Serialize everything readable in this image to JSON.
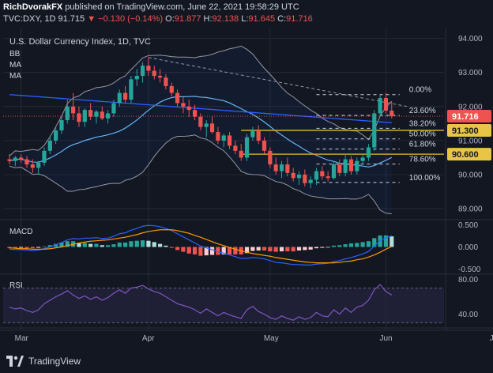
{
  "header": {
    "author": "RichDvorakFX",
    "published": "published on TradingView.com, June 22, 2021 19:58:29 UTC",
    "symbol": "TVC:DXY, 1D",
    "last": "91.715",
    "change": "▼ −0.130 (−0.14%)",
    "ohlc": {
      "o_label": "O:",
      "o": "91.877",
      "h_label": "H:",
      "h": "92.138",
      "l_label": "L:",
      "l": "91.645",
      "c_label": "C:",
      "c": "91.716"
    }
  },
  "footer": {
    "brand": "TradingView"
  },
  "colors": {
    "bg": "#131722",
    "up": "#26a69a",
    "down": "#ef5350",
    "grid": "#2a2e39",
    "fib": "#d1d4dc",
    "gold": "#c9a227",
    "bb": "#9598a1",
    "ma_slow": "#2962ff",
    "ma_fast": "#64b5f6",
    "macd_signal": "#ff9800",
    "rsi": "#7e57c2"
  },
  "chart_data": [
    {
      "type": "candlestick",
      "title": "U.S. Dollar Currency Index, 1D, TVC",
      "indicators": [
        "BB",
        "MA",
        "MA"
      ],
      "ylim": [
        88.7,
        94.2
      ],
      "yticks": [
        "94.000",
        "93.000",
        "92.000",
        "91.000",
        "90.000",
        "89.000"
      ],
      "xticks": [
        "Mar",
        "Apr",
        "May",
        "Jun",
        "Jul"
      ],
      "price_label": "91.716",
      "level_labels": [
        "91.300",
        "90.600"
      ],
      "fib_levels": [
        {
          "label": "0.00%",
          "value": 92.35
        },
        {
          "label": "23.60%",
          "value": 91.74
        },
        {
          "label": "38.20%",
          "value": 91.36
        },
        {
          "label": "50.00%",
          "value": 91.05
        },
        {
          "label": "61.80%",
          "value": 90.75
        },
        {
          "label": "78.60%",
          "value": 90.31
        },
        {
          "label": "100.00%",
          "value": 89.77
        }
      ],
      "candles": [
        [
          90.45,
          90.6,
          90.3,
          90.4
        ],
        [
          90.4,
          90.55,
          90.25,
          90.5
        ],
        [
          90.5,
          90.6,
          90.35,
          90.45
        ],
        [
          90.45,
          90.55,
          90.2,
          90.3
        ],
        [
          90.3,
          90.45,
          90.05,
          90.2
        ],
        [
          90.2,
          90.4,
          90.0,
          90.35
        ],
        [
          90.35,
          90.8,
          90.25,
          90.7
        ],
        [
          90.7,
          91.1,
          90.6,
          91.0
        ],
        [
          91.0,
          91.4,
          90.9,
          91.3
        ],
        [
          91.3,
          91.7,
          91.2,
          91.6
        ],
        [
          91.6,
          92.2,
          91.5,
          92.0
        ],
        [
          92.0,
          92.4,
          91.6,
          91.8
        ],
        [
          91.8,
          92.0,
          91.4,
          91.55
        ],
        [
          91.55,
          91.95,
          91.4,
          91.9
        ],
        [
          91.9,
          92.1,
          91.6,
          91.7
        ],
        [
          91.7,
          91.9,
          91.5,
          91.85
        ],
        [
          91.85,
          92.0,
          91.6,
          91.65
        ],
        [
          91.65,
          91.9,
          91.5,
          91.8
        ],
        [
          91.8,
          92.2,
          91.7,
          92.1
        ],
        [
          92.1,
          92.5,
          92.0,
          92.4
        ],
        [
          92.4,
          92.6,
          92.1,
          92.2
        ],
        [
          92.2,
          92.9,
          92.1,
          92.8
        ],
        [
          92.8,
          93.1,
          92.6,
          92.9
        ],
        [
          92.9,
          93.3,
          92.7,
          93.2
        ],
        [
          93.2,
          93.44,
          92.9,
          93.05
        ],
        [
          93.05,
          93.2,
          92.8,
          92.9
        ],
        [
          92.9,
          93.1,
          92.7,
          92.85
        ],
        [
          92.85,
          92.95,
          92.5,
          92.6
        ],
        [
          92.6,
          92.7,
          92.3,
          92.4
        ],
        [
          92.4,
          92.5,
          92.0,
          92.1
        ],
        [
          92.1,
          92.3,
          91.8,
          92.0
        ],
        [
          92.0,
          92.2,
          91.7,
          91.9
        ],
        [
          91.9,
          92.05,
          91.6,
          91.7
        ],
        [
          91.7,
          91.8,
          91.3,
          91.4
        ],
        [
          91.4,
          91.6,
          91.1,
          91.5
        ],
        [
          91.5,
          91.7,
          91.2,
          91.25
        ],
        [
          91.25,
          91.4,
          90.9,
          91.0
        ],
        [
          91.0,
          91.2,
          90.8,
          91.15
        ],
        [
          91.15,
          91.25,
          90.75,
          90.85
        ],
        [
          90.85,
          91.0,
          90.6,
          90.7
        ],
        [
          90.7,
          90.9,
          90.4,
          90.5
        ],
        [
          90.5,
          91.2,
          90.4,
          91.1
        ],
        [
          91.1,
          91.4,
          91.0,
          91.3
        ],
        [
          91.3,
          91.45,
          90.9,
          91.0
        ],
        [
          91.0,
          91.1,
          90.6,
          90.7
        ],
        [
          90.7,
          90.8,
          90.2,
          90.3
        ],
        [
          90.3,
          90.5,
          90.0,
          90.1
        ],
        [
          90.1,
          90.4,
          89.9,
          90.3
        ],
        [
          90.3,
          90.5,
          89.95,
          90.05
        ],
        [
          90.05,
          90.2,
          89.8,
          89.9
        ],
        [
          89.9,
          90.1,
          89.7,
          90.0
        ],
        [
          90.0,
          90.15,
          89.65,
          89.75
        ],
        [
          89.75,
          89.95,
          89.6,
          89.85
        ],
        [
          89.85,
          90.2,
          89.7,
          90.1
        ],
        [
          90.1,
          90.25,
          89.85,
          89.95
        ],
        [
          89.95,
          90.1,
          89.8,
          89.9
        ],
        [
          89.9,
          90.4,
          89.85,
          90.3
        ],
        [
          90.3,
          90.45,
          89.95,
          90.05
        ],
        [
          90.05,
          90.6,
          89.95,
          90.45
        ],
        [
          90.45,
          90.55,
          90.0,
          90.1
        ],
        [
          90.1,
          90.5,
          90.0,
          90.4
        ],
        [
          90.4,
          90.6,
          90.3,
          90.5
        ],
        [
          90.5,
          90.9,
          90.4,
          90.8
        ],
        [
          90.8,
          91.9,
          90.7,
          91.8
        ],
        [
          91.8,
          92.35,
          91.7,
          92.25
        ],
        [
          92.25,
          92.4,
          91.8,
          91.88
        ],
        [
          91.88,
          92.14,
          91.65,
          91.72
        ]
      ]
    },
    {
      "type": "bar",
      "title": "MACD",
      "ylim": [
        -0.6,
        0.6
      ],
      "yticks": [
        "0.500",
        "0.000",
        "-0.500"
      ],
      "series": [
        {
          "values": [
            -0.05,
            -0.06,
            -0.06,
            -0.07,
            -0.08,
            -0.07,
            -0.04,
            0.0,
            0.05,
            0.1,
            0.16,
            0.19,
            0.18,
            0.2,
            0.2,
            0.21,
            0.19,
            0.2,
            0.24,
            0.3,
            0.32,
            0.38,
            0.42,
            0.47,
            0.49,
            0.48,
            0.46,
            0.42,
            0.37,
            0.3,
            0.23,
            0.16,
            0.09,
            0.02,
            -0.02,
            -0.06,
            -0.11,
            -0.14,
            -0.18,
            -0.22,
            -0.26,
            -0.26,
            -0.24,
            -0.25,
            -0.27,
            -0.31,
            -0.35,
            -0.36,
            -0.38,
            -0.4,
            -0.4,
            -0.41,
            -0.41,
            -0.39,
            -0.38,
            -0.37,
            -0.33,
            -0.31,
            -0.27,
            -0.24,
            -0.2,
            -0.16,
            -0.1,
            0.02,
            0.14,
            0.21,
            0.25
          ]
        },
        {
          "values": [
            -0.02,
            -0.03,
            -0.04,
            -0.04,
            -0.05,
            -0.05,
            -0.05,
            -0.04,
            -0.02,
            0.0,
            0.03,
            0.06,
            0.09,
            0.11,
            0.13,
            0.14,
            0.15,
            0.16,
            0.18,
            0.2,
            0.22,
            0.25,
            0.28,
            0.32,
            0.35,
            0.37,
            0.39,
            0.39,
            0.39,
            0.37,
            0.34,
            0.31,
            0.26,
            0.22,
            0.17,
            0.12,
            0.07,
            0.03,
            -0.01,
            -0.05,
            -0.09,
            -0.12,
            -0.15,
            -0.17,
            -0.19,
            -0.21,
            -0.24,
            -0.26,
            -0.28,
            -0.3,
            -0.32,
            -0.34,
            -0.35,
            -0.36,
            -0.36,
            -0.36,
            -0.36,
            -0.35,
            -0.33,
            -0.32,
            -0.29,
            -0.27,
            -0.23,
            -0.18,
            -0.12,
            -0.05,
            0.01
          ]
        },
        {
          "values": [
            -0.03,
            -0.03,
            -0.02,
            -0.03,
            -0.03,
            -0.02,
            0.01,
            0.04,
            0.07,
            0.1,
            0.13,
            0.13,
            0.09,
            0.09,
            0.07,
            0.07,
            0.04,
            0.04,
            0.06,
            0.1,
            0.1,
            0.13,
            0.14,
            0.15,
            0.14,
            0.11,
            0.07,
            0.03,
            -0.02,
            -0.07,
            -0.11,
            -0.15,
            -0.17,
            -0.2,
            -0.19,
            -0.18,
            -0.18,
            -0.17,
            -0.17,
            -0.17,
            -0.17,
            -0.14,
            -0.09,
            -0.08,
            -0.08,
            -0.1,
            -0.11,
            -0.1,
            -0.1,
            -0.1,
            -0.08,
            -0.07,
            -0.06,
            -0.03,
            -0.02,
            -0.01,
            0.03,
            0.04,
            0.06,
            0.08,
            0.09,
            0.11,
            0.13,
            0.2,
            0.26,
            0.26,
            0.24
          ]
        }
      ]
    },
    {
      "type": "line",
      "title": "RSI",
      "ylim": [
        25,
        85
      ],
      "yticks": [
        "80.00",
        "40.00"
      ],
      "values": [
        48,
        46,
        47,
        44,
        42,
        45,
        52,
        56,
        60,
        63,
        67,
        62,
        58,
        61,
        57,
        60,
        56,
        59,
        64,
        68,
        64,
        70,
        71,
        73,
        69,
        66,
        64,
        60,
        56,
        52,
        50,
        48,
        45,
        41,
        46,
        42,
        38,
        42,
        39,
        37,
        35,
        45,
        49,
        43,
        40,
        36,
        34,
        38,
        35,
        33,
        37,
        34,
        36,
        42,
        38,
        37,
        45,
        40,
        47,
        42,
        48,
        50,
        56,
        68,
        74,
        66,
        62
      ]
    }
  ]
}
